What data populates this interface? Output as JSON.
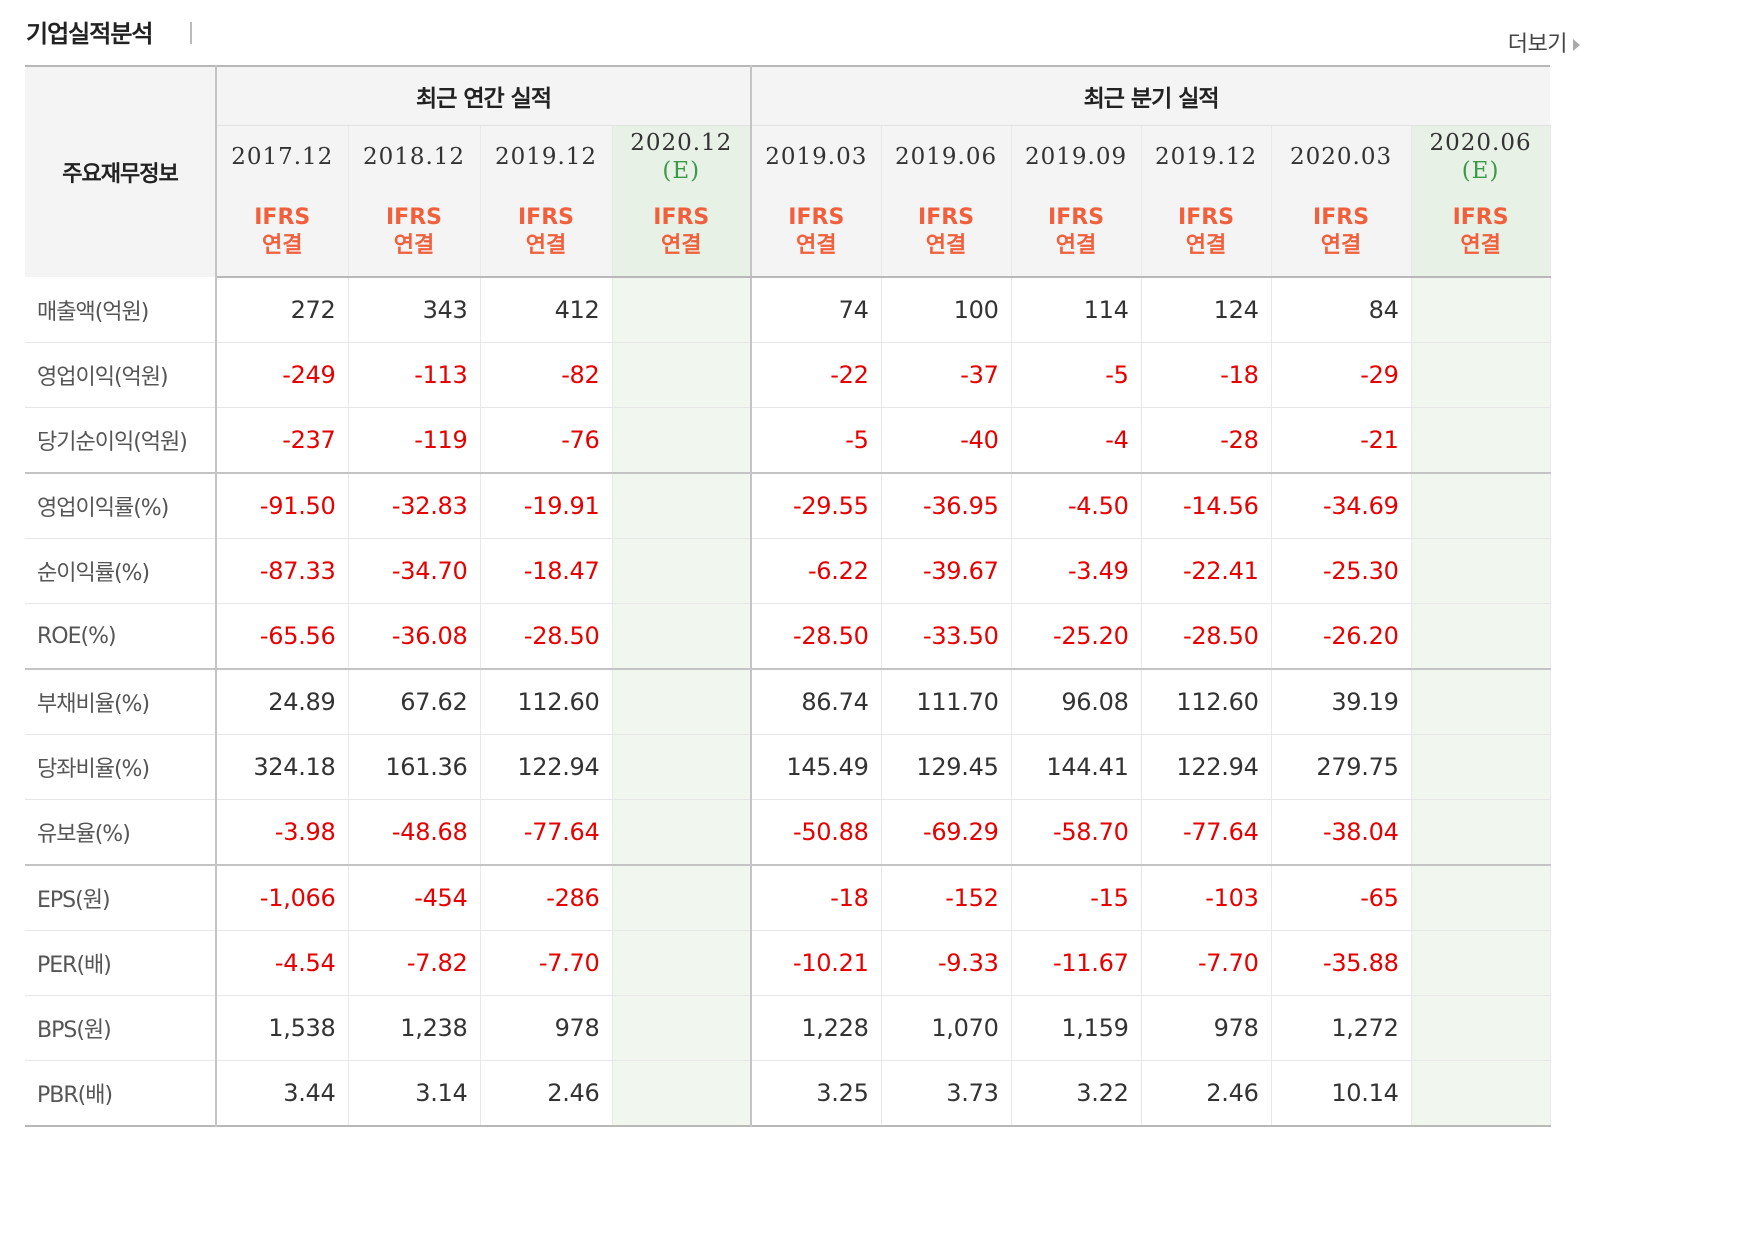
{
  "header": {
    "title": "기업실적분석",
    "more_label": "더보기"
  },
  "table": {
    "row_header_label": "주요재무정보",
    "groups": [
      {
        "label": "최근 연간 실적",
        "span": 4
      },
      {
        "label": "최근 분기 실적",
        "span": 6
      }
    ],
    "columns": [
      {
        "date": "2017.12",
        "estimate": "",
        "basis": [
          "IFRS",
          "연결"
        ]
      },
      {
        "date": "2018.12",
        "estimate": "",
        "basis": [
          "IFRS",
          "연결"
        ]
      },
      {
        "date": "2019.12",
        "estimate": "",
        "basis": [
          "IFRS",
          "연결"
        ]
      },
      {
        "date": "2020.12",
        "estimate": "(E)",
        "basis": [
          "IFRS",
          "연결"
        ]
      },
      {
        "date": "2019.03",
        "estimate": "",
        "basis": [
          "IFRS",
          "연결"
        ]
      },
      {
        "date": "2019.06",
        "estimate": "",
        "basis": [
          "IFRS",
          "연결"
        ]
      },
      {
        "date": "2019.09",
        "estimate": "",
        "basis": [
          "IFRS",
          "연결"
        ]
      },
      {
        "date": "2019.12",
        "estimate": "",
        "basis": [
          "IFRS",
          "연결"
        ]
      },
      {
        "date": "2020.03",
        "estimate": "",
        "basis": [
          "IFRS",
          "연결"
        ]
      },
      {
        "date": "2020.06",
        "estimate": "(E)",
        "basis": [
          "IFRS",
          "연결"
        ]
      }
    ],
    "rows": [
      {
        "label": "매출액(억원)",
        "values": [
          "272",
          "343",
          "412",
          "",
          "74",
          "100",
          "114",
          "124",
          "84",
          ""
        ]
      },
      {
        "label": "영업이익(억원)",
        "values": [
          "-249",
          "-113",
          "-82",
          "",
          "-22",
          "-37",
          "-5",
          "-18",
          "-29",
          ""
        ]
      },
      {
        "label": "당기순이익(억원)",
        "values": [
          "-237",
          "-119",
          "-76",
          "",
          "-5",
          "-40",
          "-4",
          "-28",
          "-21",
          ""
        ],
        "group_end": true
      },
      {
        "label": "영업이익률(%)",
        "values": [
          "-91.50",
          "-32.83",
          "-19.91",
          "",
          "-29.55",
          "-36.95",
          "-4.50",
          "-14.56",
          "-34.69",
          ""
        ]
      },
      {
        "label": "순이익률(%)",
        "values": [
          "-87.33",
          "-34.70",
          "-18.47",
          "",
          "-6.22",
          "-39.67",
          "-3.49",
          "-22.41",
          "-25.30",
          ""
        ]
      },
      {
        "label": "ROE(%)",
        "values": [
          "-65.56",
          "-36.08",
          "-28.50",
          "",
          "-28.50",
          "-33.50",
          "-25.20",
          "-28.50",
          "-26.20",
          ""
        ],
        "group_end": true
      },
      {
        "label": "부채비율(%)",
        "values": [
          "24.89",
          "67.62",
          "112.60",
          "",
          "86.74",
          "111.70",
          "96.08",
          "112.60",
          "39.19",
          ""
        ]
      },
      {
        "label": "당좌비율(%)",
        "values": [
          "324.18",
          "161.36",
          "122.94",
          "",
          "145.49",
          "129.45",
          "144.41",
          "122.94",
          "279.75",
          ""
        ]
      },
      {
        "label": "유보율(%)",
        "values": [
          "-3.98",
          "-48.68",
          "-77.64",
          "",
          "-50.88",
          "-69.29",
          "-58.70",
          "-77.64",
          "-38.04",
          ""
        ],
        "group_end": true
      },
      {
        "label": "EPS(원)",
        "values": [
          "-1,066",
          "-454",
          "-286",
          "",
          "-18",
          "-152",
          "-15",
          "-103",
          "-65",
          ""
        ]
      },
      {
        "label": "PER(배)",
        "values": [
          "-4.54",
          "-7.82",
          "-7.70",
          "",
          "-10.21",
          "-9.33",
          "-11.67",
          "-7.70",
          "-35.88",
          ""
        ]
      },
      {
        "label": "BPS(원)",
        "values": [
          "1,538",
          "1,238",
          "978",
          "",
          "1,228",
          "1,070",
          "1,159",
          "978",
          "1,272",
          ""
        ]
      },
      {
        "label": "PBR(배)",
        "values": [
          "3.44",
          "3.14",
          "2.46",
          "",
          "3.25",
          "3.73",
          "3.22",
          "2.46",
          "10.14",
          ""
        ]
      }
    ]
  },
  "colors": {
    "negative": "#e60000",
    "basis": "#f0603c",
    "estimate_mark": "#3a9a48",
    "estimate_bg": "#e8f1e6"
  }
}
